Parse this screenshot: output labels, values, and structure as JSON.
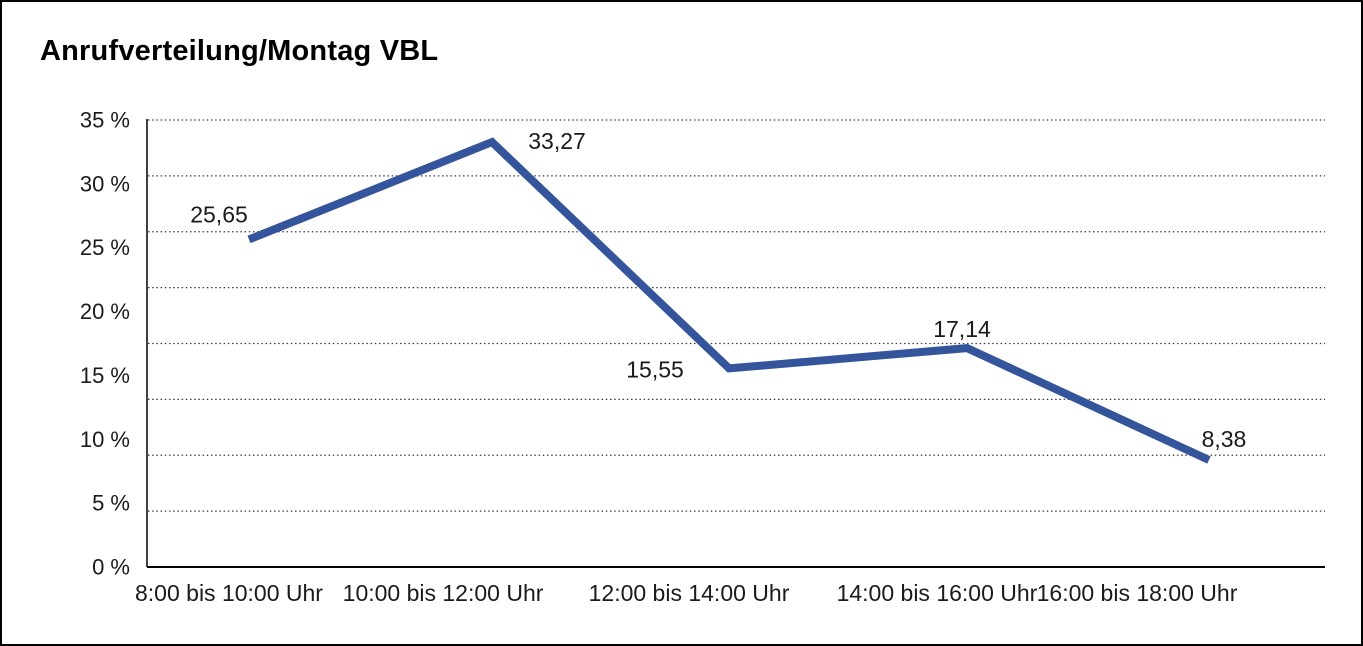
{
  "frame": {
    "background": "#ffffff",
    "border_color": "#000000"
  },
  "chart_data": {
    "type": "line",
    "title": "Anrufverteilung/Montag VBL",
    "categories": [
      "8:00 bis 10:00 Uhr",
      "10:00 bis 12:00 Uhr",
      "12:00 bis 14:00 Uhr",
      "14:00 bis 16:00 Uhr",
      "16:00 bis 18:00 Uhr"
    ],
    "values": [
      25.65,
      33.27,
      15.55,
      17.14,
      8.38
    ],
    "value_labels": [
      "25,65",
      "33,27",
      "15,55",
      "17,14",
      "8,38"
    ],
    "unit": "%",
    "xlabel": "",
    "ylabel": "",
    "ylim": [
      0,
      35
    ],
    "ytick_step": 5,
    "ytick_labels": [
      "35 %",
      "30 %",
      "25 %",
      "20 %",
      "15 %",
      "10 %",
      "5 %",
      "0 %"
    ],
    "grid": "dotted horizontal",
    "legend": "none",
    "line_color": "#34549C",
    "axis_color": "#000000",
    "grid_color": "#3a3a3a",
    "text_color": "#1a1a1a"
  }
}
